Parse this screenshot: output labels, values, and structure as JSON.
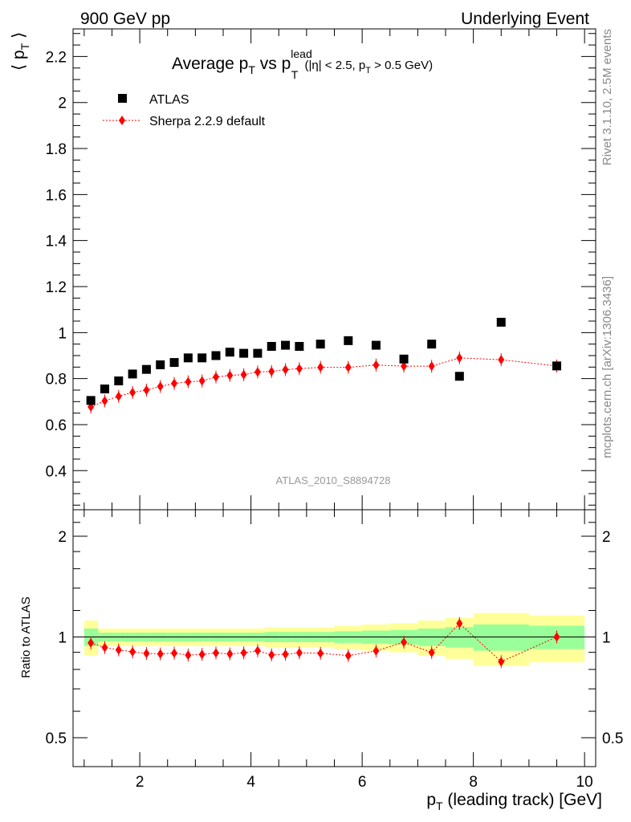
{
  "header": {
    "left": "900 GeV pp",
    "right": "Underlying Event"
  },
  "side_text": {
    "rivet": "Rivet 3.1.10,  2.5M events",
    "mcplots": "mcplots.cern.ch [arXiv:1306.3436]"
  },
  "analysis_id": "ATLAS_2010_S8894728",
  "chart_data": [
    {
      "type": "scatter",
      "title": {
        "main": "Average p",
        "sub_T": "T",
        "vs": " vs p",
        "sup_lead": "lead",
        "sub_T2": "T",
        "cuts_a": " (|η| < 2.5, p",
        "cuts_sub": "T",
        "cuts_b": " > 0.5 GeV)"
      },
      "ylabel": {
        "open": "⟨ p",
        "sub": "T",
        "close": " ⟩"
      },
      "xlim": [
        0.8,
        10.2
      ],
      "ylim": [
        0.23,
        2.32
      ],
      "yticks": [
        {
          "v": 0.4,
          "label": "0.4"
        },
        {
          "v": 0.6,
          "label": "0.6"
        },
        {
          "v": 0.8,
          "label": "0.8"
        },
        {
          "v": 1.0,
          "label": "1"
        },
        {
          "v": 1.2,
          "label": "1.2"
        },
        {
          "v": 1.4,
          "label": "1.4"
        },
        {
          "v": 1.6,
          "label": "1.6"
        },
        {
          "v": 1.8,
          "label": "1.8"
        },
        {
          "v": 2.0,
          "label": "2"
        },
        {
          "v": 2.2,
          "label": "2.2"
        }
      ],
      "legend": {
        "placement": "top-left",
        "entries": [
          {
            "label": "ATLAS",
            "marker": "square",
            "color": "#000000"
          },
          {
            "label": "Sherpa 2.2.9 default",
            "marker": "diamond",
            "color": "#ff0000"
          }
        ]
      },
      "series": [
        {
          "name": "ATLAS",
          "color": "#000000",
          "marker": "square",
          "x": [
            1.12,
            1.37,
            1.62,
            1.87,
            2.12,
            2.37,
            2.62,
            2.87,
            3.12,
            3.37,
            3.62,
            3.87,
            4.12,
            4.37,
            4.62,
            4.87,
            5.25,
            5.75,
            6.25,
            6.75,
            7.25,
            7.75,
            8.5,
            9.5
          ],
          "y": [
            0.705,
            0.755,
            0.79,
            0.82,
            0.84,
            0.86,
            0.87,
            0.89,
            0.89,
            0.9,
            0.915,
            0.91,
            0.91,
            0.94,
            0.945,
            0.94,
            0.95,
            0.965,
            0.945,
            0.885,
            0.95,
            0.81,
            1.045,
            0.855
          ]
        },
        {
          "name": "Sherpa 2.2.9 default",
          "color": "#ff0000",
          "marker": "diamond",
          "x": [
            1.12,
            1.37,
            1.62,
            1.87,
            2.12,
            2.37,
            2.62,
            2.87,
            3.12,
            3.37,
            3.62,
            3.87,
            4.12,
            4.37,
            4.62,
            4.87,
            5.25,
            5.75,
            6.25,
            6.75,
            7.25,
            7.75,
            8.5,
            9.5
          ],
          "y": [
            0.677,
            0.703,
            0.723,
            0.74,
            0.75,
            0.766,
            0.779,
            0.786,
            0.79,
            0.807,
            0.814,
            0.817,
            0.829,
            0.831,
            0.839,
            0.843,
            0.849,
            0.849,
            0.859,
            0.854,
            0.854,
            0.89,
            0.882,
            0.855
          ]
        }
      ]
    },
    {
      "type": "scatter",
      "ylabel": "Ratio to ATLAS",
      "xlabel": {
        "main": "p",
        "sub": "T",
        "rest": " (leading track) [GeV]"
      },
      "xlim": [
        0.8,
        10.2
      ],
      "ylim": [
        0.41,
        2.4
      ],
      "log_y": true,
      "xticks": [
        {
          "v": 2,
          "label": "2"
        },
        {
          "v": 4,
          "label": "4"
        },
        {
          "v": 6,
          "label": "6"
        },
        {
          "v": 8,
          "label": "8"
        },
        {
          "v": 10,
          "label": "10"
        }
      ],
      "yticks": [
        {
          "v": 0.5,
          "label": "0.5"
        },
        {
          "v": 1,
          "label": "1"
        },
        {
          "v": 2,
          "label": "2"
        }
      ],
      "bands": {
        "edges": [
          1.0,
          1.25,
          1.5,
          1.75,
          2.0,
          2.25,
          2.5,
          2.75,
          3.0,
          3.25,
          3.5,
          3.75,
          4.0,
          4.25,
          4.5,
          4.75,
          5.0,
          5.5,
          6.0,
          6.5,
          7.0,
          7.5,
          8.0,
          9.0,
          10.0
        ],
        "green": [
          0.06,
          0.03,
          0.03,
          0.03,
          0.03,
          0.03,
          0.03,
          0.03,
          0.03,
          0.03,
          0.03,
          0.03,
          0.03,
          0.035,
          0.035,
          0.035,
          0.035,
          0.04,
          0.045,
          0.05,
          0.06,
          0.07,
          0.09,
          0.08
        ],
        "yellow": [
          0.12,
          0.06,
          0.06,
          0.06,
          0.06,
          0.06,
          0.06,
          0.06,
          0.06,
          0.06,
          0.06,
          0.06,
          0.06,
          0.07,
          0.07,
          0.07,
          0.07,
          0.08,
          0.09,
          0.1,
          0.12,
          0.14,
          0.18,
          0.16
        ],
        "green_color": "#99ff99",
        "yellow_color": "#ffff99"
      },
      "series": [
        {
          "name": "Sherpa 2.2.9 default",
          "color": "#ff0000",
          "marker": "diamond",
          "x": [
            1.12,
            1.37,
            1.62,
            1.87,
            2.12,
            2.37,
            2.62,
            2.87,
            3.12,
            3.37,
            3.62,
            3.87,
            4.12,
            4.37,
            4.62,
            4.87,
            5.25,
            5.75,
            6.25,
            6.75,
            7.25,
            7.75,
            8.5,
            9.5
          ],
          "y": [
            0.96,
            0.93,
            0.915,
            0.903,
            0.893,
            0.89,
            0.895,
            0.883,
            0.887,
            0.896,
            0.89,
            0.897,
            0.91,
            0.884,
            0.888,
            0.897,
            0.894,
            0.88,
            0.909,
            0.965,
            0.899,
            1.098,
            0.844,
            1.0
          ]
        }
      ]
    }
  ]
}
